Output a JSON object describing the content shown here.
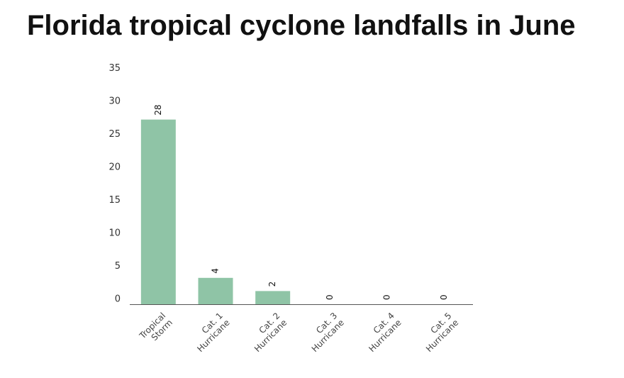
{
  "chart_data": {
    "type": "bar",
    "title": "Florida tropical cyclone landfalls in June",
    "xlabel": "",
    "ylabel": "",
    "categories": [
      [
        "Tropical",
        "Storm"
      ],
      [
        "Cat. 1",
        "Hurricane"
      ],
      [
        "Cat. 2",
        "Hurricane"
      ],
      [
        "Cat. 3",
        "Hurricane"
      ],
      [
        "Cat. 4",
        "Hurricane"
      ],
      [
        "Cat. 5",
        "Hurricane"
      ]
    ],
    "values": [
      28,
      4,
      2,
      0,
      0,
      0
    ],
    "data_labels": [
      "28",
      "4",
      "2",
      "0",
      "0",
      "0"
    ],
    "yticks": [
      0,
      5,
      10,
      15,
      20,
      25,
      30,
      35
    ],
    "ylim": [
      0,
      35
    ],
    "grid": false,
    "legend": "none",
    "bar_color": "#8fc4a6",
    "axis_color": "#555555"
  }
}
